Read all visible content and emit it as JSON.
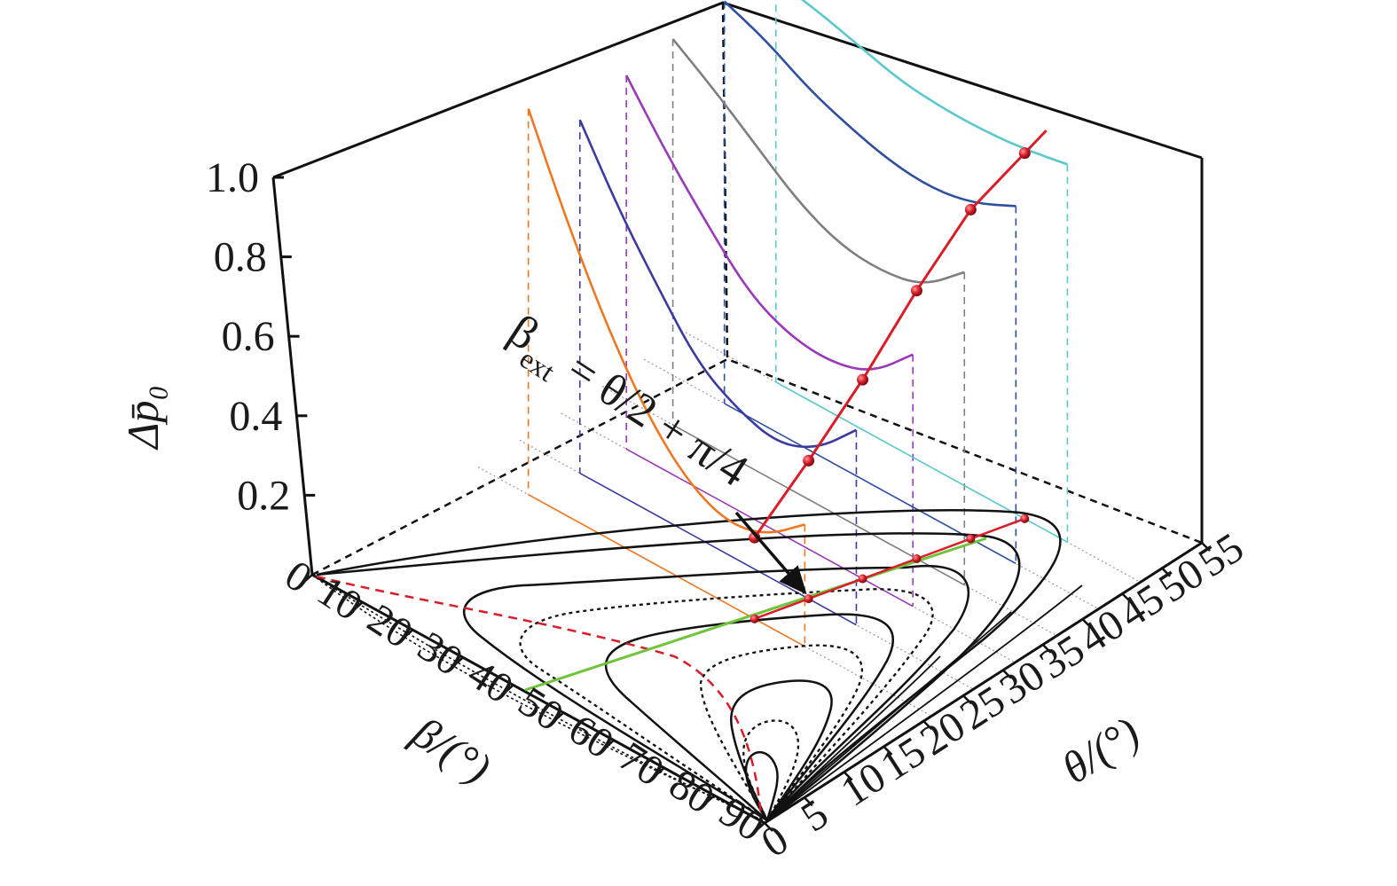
{
  "chart_data": {
    "type": "line",
    "title": "",
    "axes": {
      "beta": {
        "label": "β/(°)",
        "range": [
          0,
          90
        ],
        "ticks": [
          "0",
          "10",
          "20",
          "30",
          "40",
          "50",
          "60",
          "70",
          "80",
          "90"
        ]
      },
      "theta": {
        "label": "θ/(°)",
        "range": [
          0,
          55
        ],
        "ticks": [
          "0",
          "5",
          "10",
          "15",
          "20",
          "25",
          "30",
          "35",
          "40",
          "45",
          "50",
          "55"
        ]
      },
      "z": {
        "label": "Δp̄₀",
        "range": [
          0,
          1.0
        ],
        "ticks": [
          "0.2",
          "0.4",
          "0.6",
          "0.8",
          "1.0"
        ]
      }
    },
    "annotation": {
      "beta_sym": "β",
      "ext": "ext",
      "rest": " = θ/2 + π/4"
    },
    "series": [
      {
        "theta": 20,
        "color": "#ee7722",
        "beta_range": [
          10,
          65
        ],
        "z": [
          0.95,
          0.72,
          0.52,
          0.36,
          0.25,
          0.2,
          0.22,
          0.3
        ]
      },
      {
        "theta": 25,
        "color": "#3a3aa0",
        "beta_range": [
          12,
          67
        ],
        "z": [
          0.87,
          0.7,
          0.56,
          0.43,
          0.37,
          0.34,
          0.38,
          0.48
        ]
      },
      {
        "theta": 30,
        "color": "#9a3ab8",
        "beta_range": [
          13,
          70
        ],
        "z": [
          0.92,
          0.78,
          0.66,
          0.55,
          0.5,
          0.49,
          0.52,
          0.62
        ]
      },
      {
        "theta": 35,
        "color": "#7f7f7f",
        "beta_range": [
          14,
          72
        ],
        "z": [
          0.95,
          0.88,
          0.8,
          0.72,
          0.67,
          0.66,
          0.68,
          0.77
        ]
      },
      {
        "theta": 40,
        "color": "#2e4fa0",
        "beta_range": [
          16,
          74
        ],
        "z": [
          0.99,
          0.95,
          0.89,
          0.85,
          0.82,
          0.81,
          0.83,
          0.88
        ]
      },
      {
        "theta": 45,
        "color": "#5ac8cc",
        "beta_range": [
          18,
          76
        ],
        "z": [
          0.99,
          0.97,
          0.94,
          0.91,
          0.9,
          0.9,
          0.91,
          0.93
        ]
      }
    ],
    "extremum_points": [
      {
        "theta": 20,
        "beta": 55,
        "z": 0.2
      },
      {
        "theta": 25,
        "beta": 57.5,
        "z": 0.34
      },
      {
        "theta": 30,
        "beta": 60,
        "z": 0.49
      },
      {
        "theta": 35,
        "beta": 62.5,
        "z": 0.66
      },
      {
        "theta": 40,
        "beta": 65,
        "z": 0.81
      },
      {
        "theta": 45,
        "beta": 67.5,
        "z": 0.9
      }
    ],
    "colors": {
      "extremum_line": "#d81e2a",
      "green_line": "#6ec43a",
      "contour": "#111111",
      "red_dashed_boundary": "#d81e2a"
    },
    "grid": false
  }
}
